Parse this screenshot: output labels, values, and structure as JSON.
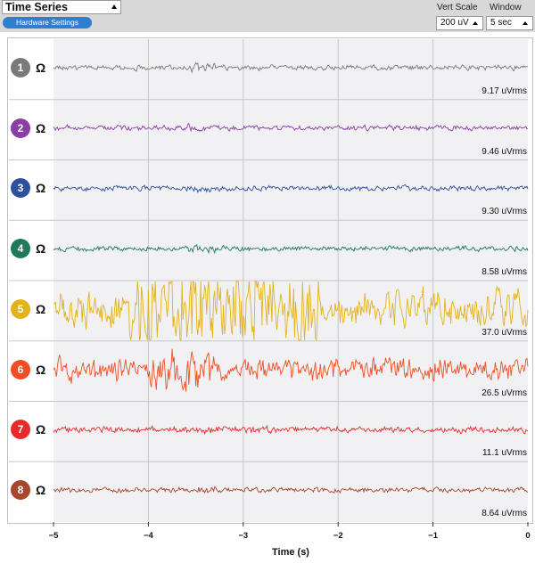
{
  "toolbar": {
    "mode": "Time Series",
    "hardware_button": "Hardware Settings",
    "vert_scale_label": "Vert Scale",
    "window_label": "Window",
    "vert_scale_value": "200 uV",
    "window_value": "5 sec"
  },
  "channels": [
    {
      "number": "1",
      "color": "#7a7a7a",
      "rms": "9.17 uVrms",
      "amplitude": 0.05,
      "noise": "low"
    },
    {
      "number": "2",
      "color": "#8a3fa6",
      "rms": "9.46 uVrms",
      "amplitude": 0.05,
      "noise": "low"
    },
    {
      "number": "3",
      "color": "#2d4fa0",
      "rms": "9.30 uVrms",
      "amplitude": 0.05,
      "noise": "low"
    },
    {
      "number": "4",
      "color": "#1f7a5a",
      "rms": "8.58 uVrms",
      "amplitude": 0.05,
      "noise": "low"
    },
    {
      "number": "5",
      "color": "#e3b31b",
      "rms": "37.0 uVrms",
      "amplitude": 0.35,
      "noise": "high"
    },
    {
      "number": "6",
      "color": "#f04e23",
      "rms": "26.5 uVrms",
      "amplitude": 0.22,
      "noise": "mid"
    },
    {
      "number": "7",
      "color": "#e82a2a",
      "rms": "11.1 uVrms",
      "amplitude": 0.06,
      "noise": "low"
    },
    {
      "number": "8",
      "color": "#a8452a",
      "rms": "8.64 uVrms",
      "amplitude": 0.05,
      "noise": "low"
    }
  ],
  "impedance_icon": "ohm-icon",
  "x_axis": {
    "label": "Time (s)",
    "ticks": [
      "−5",
      "−4",
      "−3",
      "−2",
      "−1",
      "0"
    ],
    "range": [
      -5,
      0
    ]
  },
  "chart_data": {
    "type": "line",
    "xlabel": "Time (s)",
    "xlim": [
      -5,
      0
    ],
    "series": [
      {
        "name": "1",
        "rms_uV": 9.17
      },
      {
        "name": "2",
        "rms_uV": 9.46
      },
      {
        "name": "3",
        "rms_uV": 9.3
      },
      {
        "name": "4",
        "rms_uV": 8.58
      },
      {
        "name": "5",
        "rms_uV": 37.0
      },
      {
        "name": "6",
        "rms_uV": 26.5
      },
      {
        "name": "7",
        "rms_uV": 11.1
      },
      {
        "name": "8",
        "rms_uV": 8.64
      }
    ],
    "grid": true
  }
}
